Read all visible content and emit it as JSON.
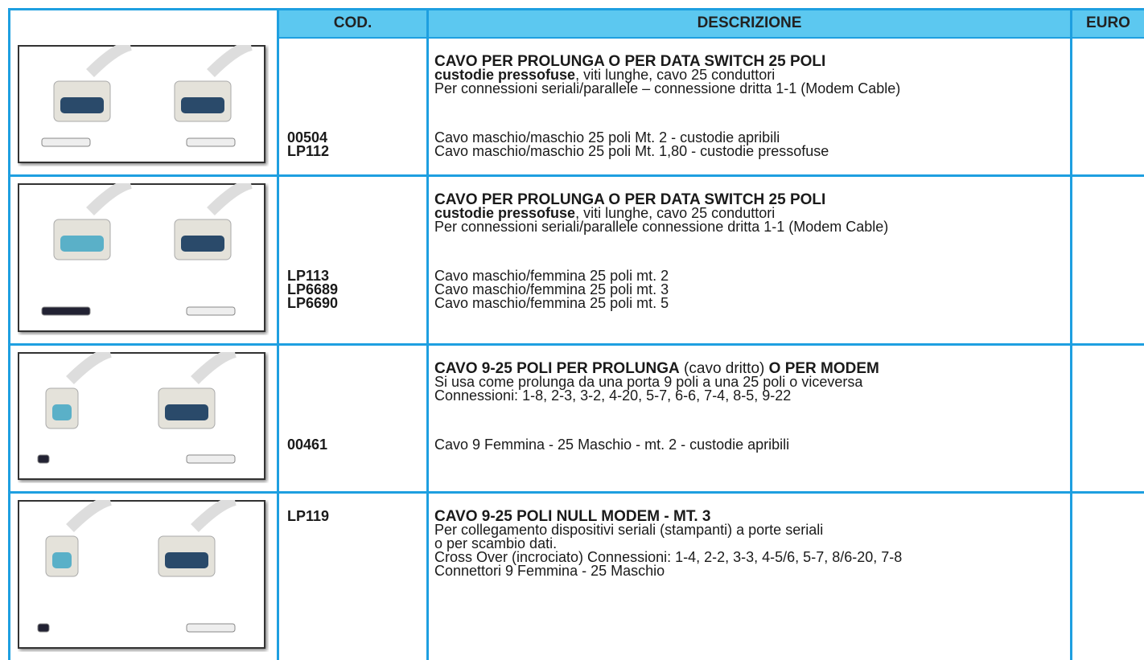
{
  "header": [
    "COD.",
    "DESCRIZIONE",
    "EURO"
  ],
  "rows": [
    {
      "heading": [
        [
          {
            "text": "CAVO PER PROLUNGA O PER DATA SWITCH 25 POLI",
            "bold": true
          }
        ],
        [
          {
            "text": "custodie pressofuse",
            "bold": true
          },
          {
            "text": ", viti lunghe, cavo 25 conduttori"
          }
        ],
        [
          {
            "text": "Per connessioni seriali/parallele – connessione dritta 1-1 (Modem Cable)"
          }
        ]
      ],
      "items": [
        {
          "code": "00504",
          "text": "Cavo maschio/maschio 25 poli Mt. 2 - custodie apribili"
        },
        {
          "code": "LP112",
          "text": "Cavo maschio/maschio 25 poli Mt. 1,80 - custodie pressofuse"
        }
      ]
    },
    {
      "heading": [
        [
          {
            "text": "CAVO PER PROLUNGA O PER DATA SWITCH 25 POLI",
            "bold": true
          }
        ],
        [
          {
            "text": "custodie pressofuse",
            "bold": true
          },
          {
            "text": ", viti lunghe, cavo 25 conduttori"
          }
        ],
        [
          {
            "text": "Per connessioni seriali/parallele connessione dritta 1-1 (Modem Cable)"
          }
        ]
      ],
      "items": [
        {
          "code": "LP113",
          "text": "Cavo maschio/femmina 25 poli mt. 2"
        },
        {
          "code": "LP6689",
          "text": "Cavo maschio/femmina 25 poli mt. 3"
        },
        {
          "code": "LP6690",
          "text": "Cavo maschio/femmina 25 poli mt. 5"
        }
      ]
    },
    {
      "heading": [
        [
          {
            "text": "CAVO 9-25 POLI PER PROLUNGA",
            "bold": true
          },
          {
            "text": " (cavo dritto) "
          },
          {
            "text": "O PER MODEM",
            "bold": true
          }
        ],
        [
          {
            "text": "Si usa come prolunga da una porta 9 poli a una 25 poli o viceversa"
          }
        ],
        [
          {
            "text": "Connessioni: 1-8, 2-3, 3-2, 4-20, 5-7, 6-6, 7-4, 8-5, 9-22"
          }
        ]
      ],
      "items": [
        {
          "code": "00461",
          "text": "Cavo 9 Femmina - 25 Maschio - mt.  2 - custodie apribili"
        }
      ]
    },
    {
      "code": "LP119",
      "heading": [
        [
          {
            "text": "CAVO 9-25 POLI NULL MODEM - MT. 3",
            "bold": true
          }
        ],
        [
          {
            "text": "Per collegamento dispositivi seriali (stampanti) a porte seriali"
          }
        ],
        [
          {
            "text": "o per scambio dati."
          }
        ],
        [
          {
            "text": "Cross Over (incrociato) Connessioni: 1-4, 2-2, 3-3, 4-5/6, 5-7, 8/6-20, 7-8"
          }
        ],
        [
          {
            "text": "Connettori 9 Femmina - 25 Maschio"
          }
        ]
      ],
      "items": []
    }
  ]
}
